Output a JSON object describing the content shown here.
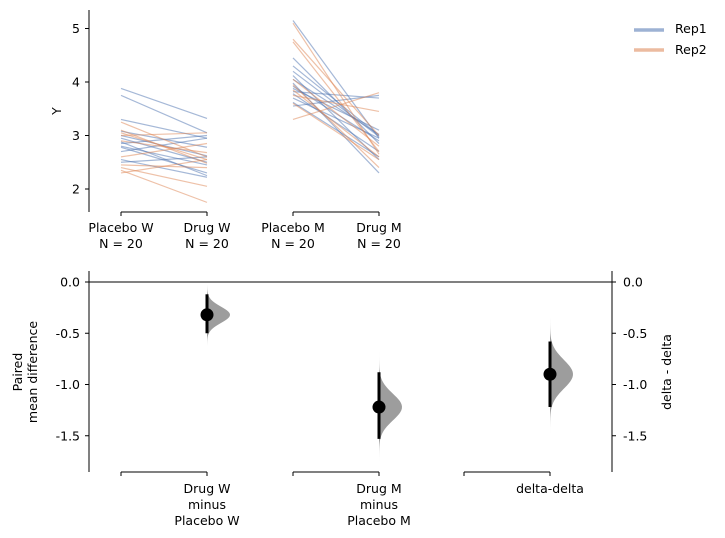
{
  "chart_data": [
    {
      "type": "line",
      "ylabel": "Y",
      "yticks": [
        2,
        3,
        4,
        5
      ],
      "ylim": [
        1.6,
        5.3
      ],
      "legend_position": "top-right",
      "groups": [
        {
          "label_line1": "Placebo W",
          "label_line2": "N = 20"
        },
        {
          "label_line1": "Drug W",
          "label_line2": "N = 20"
        },
        {
          "label_line1": "Placebo M",
          "label_line2": "N = 20"
        },
        {
          "label_line1": "Drug M",
          "label_line2": "N = 20"
        }
      ],
      "series": [
        {
          "name": "Rep1",
          "color": "#4c72b0",
          "pairs": [
            {
              "block": 0,
              "values": [
                [
                  3.88,
                  3.32
                ],
                [
                  3.75,
                  3.05
                ],
                [
                  3.3,
                  2.95
                ],
                [
                  3.08,
                  2.78
                ],
                [
                  3.0,
                  2.62
                ],
                [
                  2.95,
                  2.5
                ],
                [
                  2.88,
                  2.25
                ],
                [
                  2.85,
                  3.0
                ],
                [
                  2.8,
                  2.45
                ],
                [
                  2.78,
                  2.3
                ],
                [
                  2.7,
                  2.95
                ],
                [
                  2.55,
                  2.22
                ],
                [
                  2.5,
                  2.6
                ]
              ]
            },
            {
              "block": 1,
              "values": [
                [
                  4.45,
                  2.85
                ],
                [
                  4.3,
                  3.0
                ],
                [
                  4.2,
                  2.98
                ],
                [
                  4.12,
                  2.55
                ],
                [
                  4.05,
                  3.02
                ],
                [
                  3.98,
                  2.3
                ],
                [
                  3.92,
                  2.9
                ],
                [
                  3.88,
                  3.1
                ],
                [
                  3.82,
                  3.7
                ],
                [
                  3.78,
                  2.7
                ],
                [
                  3.7,
                  2.95
                ],
                [
                  3.62,
                  2.6
                ],
                [
                  3.55,
                  3.75
                ],
                [
                  5.15,
                  2.95
                ]
              ]
            }
          ]
        },
        {
          "name": "Rep2",
          "color": "#dd8452",
          "pairs": [
            {
              "block": 0,
              "values": [
                [
                  3.25,
                  2.6
                ],
                [
                  3.1,
                  2.48
                ],
                [
                  3.05,
                  2.55
                ],
                [
                  3.0,
                  3.05
                ],
                [
                  2.9,
                  2.68
                ],
                [
                  2.6,
                  2.85
                ],
                [
                  2.45,
                  2.4
                ],
                [
                  2.4,
                  2.05
                ],
                [
                  2.35,
                  1.75
                ],
                [
                  2.3,
                  2.55
                ]
              ]
            },
            {
              "block": 1,
              "values": [
                [
                  5.1,
                  2.65
                ],
                [
                  4.8,
                  3.0
                ],
                [
                  4.75,
                  2.7
                ],
                [
                  4.05,
                  2.8
                ],
                [
                  3.95,
                  2.4
                ],
                [
                  3.6,
                  2.55
                ],
                [
                  3.3,
                  3.8
                ],
                [
                  3.75,
                  3.45
                ],
                [
                  3.85,
                  2.6
                ]
              ]
            }
          ]
        }
      ]
    },
    {
      "type": "scatter",
      "ylabel_line1": "Paired",
      "ylabel_line2": "mean difference",
      "right_ylabel": "delta - delta",
      "yticks": [
        "0.0",
        "-0.5",
        "-1.0",
        "-1.5"
      ],
      "ylim": [
        -1.85,
        0.1
      ],
      "reference_line": 0.0,
      "distribution_color": "#8c8c8c",
      "effects": [
        {
          "label_line1": "Drug W",
          "label_line2": "minus",
          "label_line3": "Placebo W",
          "mean": -0.32,
          "ci_low": -0.5,
          "ci_high": -0.12,
          "dist_min": -0.62,
          "dist_max": -0.03,
          "dist_sd": 0.08
        },
        {
          "label_line1": "Drug M",
          "label_line2": "minus",
          "label_line3": "Placebo M",
          "mean": -1.22,
          "ci_low": -1.53,
          "ci_high": -0.88,
          "dist_min": -1.75,
          "dist_max": -0.68,
          "dist_sd": 0.13
        },
        {
          "label_line1": "delta-delta",
          "mean": -0.9,
          "ci_low": -1.22,
          "ci_high": -0.58,
          "dist_min": -1.48,
          "dist_max": -0.35,
          "dist_sd": 0.14
        }
      ]
    }
  ]
}
